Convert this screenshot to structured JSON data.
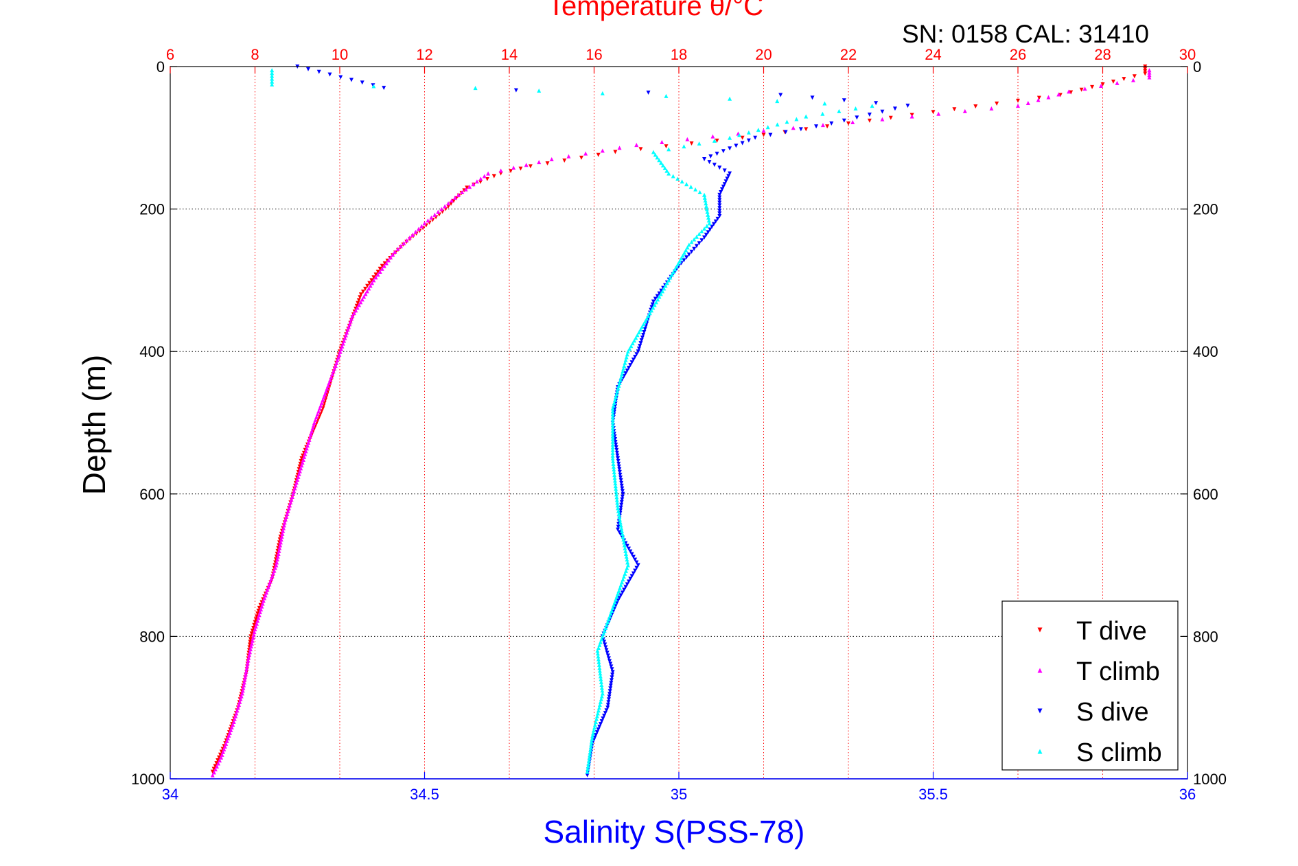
{
  "chart_data": {
    "type": "scatter",
    "title": "Temperature θ/°C",
    "annotation": "SN: 0158  CAL: 31410",
    "xlabel": "Salinity S(PSS-78)",
    "ylabel": "Depth (m)",
    "xlim_salinity": [
      34,
      36
    ],
    "xlim_temperature": [
      6,
      30
    ],
    "ylim_depth": [
      0,
      1000
    ],
    "y_reversed": true,
    "grid": true,
    "legend_position": "bottom-right",
    "temperature_ticks": [
      6,
      8,
      10,
      12,
      14,
      16,
      18,
      20,
      22,
      24,
      26,
      28,
      30
    ],
    "salinity_ticks": [
      "34",
      "34.5",
      "35",
      "35.5",
      "36"
    ],
    "depth_ticks": [
      0,
      200,
      400,
      600,
      800,
      1000
    ],
    "colors": {
      "temperature_axis": "#ff0000",
      "salinity_axis": "#0000ff",
      "t_dive": "#ff0000",
      "t_climb": "#ff00ff",
      "s_dive": "#0000ff",
      "s_climb": "#00ffff"
    },
    "series": [
      {
        "name": "T dive",
        "axis": "temperature",
        "color": "#ff0000",
        "marker": "triangle-down",
        "points": [
          [
            29,
            0
          ],
          [
            29,
            10
          ],
          [
            27,
            40
          ],
          [
            24.5,
            60
          ],
          [
            22,
            80
          ],
          [
            19.5,
            100
          ],
          [
            16.5,
            120
          ],
          [
            14.5,
            140
          ],
          [
            13.8,
            150
          ],
          [
            13,
            170
          ],
          [
            12.5,
            200
          ],
          [
            11.5,
            250
          ],
          [
            11,
            280
          ],
          [
            10.5,
            320
          ],
          [
            10,
            400
          ],
          [
            9.6,
            480
          ],
          [
            9.1,
            550
          ],
          [
            8.9,
            600
          ],
          [
            8.6,
            660
          ],
          [
            8.4,
            720
          ],
          [
            8.1,
            760
          ],
          [
            7.9,
            800
          ],
          [
            7.8,
            850
          ],
          [
            7.6,
            900
          ],
          [
            7.3,
            950
          ],
          [
            7,
            990
          ]
        ]
      },
      {
        "name": "T climb",
        "axis": "temperature",
        "color": "#ff00ff",
        "marker": "triangle-up",
        "points": [
          [
            29.1,
            5
          ],
          [
            29.1,
            15
          ],
          [
            27.2,
            35
          ],
          [
            26,
            55
          ],
          [
            23.5,
            70
          ],
          [
            20,
            90
          ],
          [
            17,
            110
          ],
          [
            15,
            130
          ],
          [
            13.5,
            150
          ],
          [
            12.8,
            180
          ],
          [
            12,
            220
          ],
          [
            11.3,
            260
          ],
          [
            10.8,
            300
          ],
          [
            10.3,
            350
          ],
          [
            9.9,
            420
          ],
          [
            9.4,
            500
          ],
          [
            9,
            580
          ],
          [
            8.7,
            640
          ],
          [
            8.5,
            700
          ],
          [
            8.2,
            750
          ],
          [
            8,
            790
          ],
          [
            7.85,
            830
          ],
          [
            7.7,
            880
          ],
          [
            7.5,
            920
          ],
          [
            7.2,
            970
          ],
          [
            7,
            995
          ]
        ]
      },
      {
        "name": "S dive",
        "axis": "salinity",
        "color": "#0000ff",
        "marker": "triangle-down",
        "points": [
          [
            34.25,
            0
          ],
          [
            34.42,
            30
          ],
          [
            35.2,
            40
          ],
          [
            35.45,
            55
          ],
          [
            35.3,
            80
          ],
          [
            35.15,
            100
          ],
          [
            35.05,
            130
          ],
          [
            35.1,
            150
          ],
          [
            35.08,
            180
          ],
          [
            35.08,
            210
          ],
          [
            35.05,
            240
          ],
          [
            35,
            280
          ],
          [
            34.95,
            330
          ],
          [
            34.92,
            400
          ],
          [
            34.88,
            450
          ],
          [
            34.87,
            500
          ],
          [
            34.88,
            550
          ],
          [
            34.89,
            600
          ],
          [
            34.88,
            650
          ],
          [
            34.92,
            700
          ],
          [
            34.88,
            750
          ],
          [
            34.85,
            800
          ],
          [
            34.87,
            850
          ],
          [
            34.86,
            900
          ],
          [
            34.83,
            950
          ],
          [
            34.82,
            995
          ]
        ]
      },
      {
        "name": "S climb",
        "axis": "salinity",
        "color": "#00ffff",
        "marker": "triangle-up",
        "points": [
          [
            34.2,
            5
          ],
          [
            34.2,
            25
          ],
          [
            34.6,
            30
          ],
          [
            35.1,
            45
          ],
          [
            35.38,
            55
          ],
          [
            35.25,
            70
          ],
          [
            35.1,
            100
          ],
          [
            34.95,
            120
          ],
          [
            34.98,
            150
          ],
          [
            35.05,
            180
          ],
          [
            35.06,
            220
          ],
          [
            35.02,
            250
          ],
          [
            34.98,
            300
          ],
          [
            34.94,
            350
          ],
          [
            34.9,
            400
          ],
          [
            34.87,
            480
          ],
          [
            34.87,
            550
          ],
          [
            34.88,
            620
          ],
          [
            34.9,
            700
          ],
          [
            34.87,
            760
          ],
          [
            34.84,
            820
          ],
          [
            34.85,
            880
          ],
          [
            34.83,
            940
          ],
          [
            34.82,
            990
          ]
        ]
      }
    ]
  }
}
